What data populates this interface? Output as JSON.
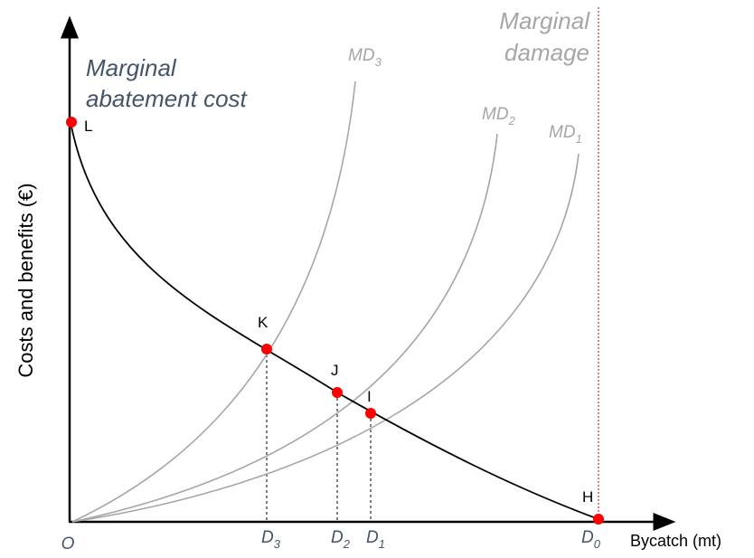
{
  "y_axis_label": "Costs and benefits (€)",
  "x_axis_label": "Bycatch (mt)",
  "origin_label": "O",
  "mac_label": {
    "line1": "Marginal",
    "line2": "abatement cost"
  },
  "md_label": {
    "line1": "Marginal",
    "line2": "damage"
  },
  "curves": [
    {
      "key": "md3",
      "base": "MD",
      "sub": "3"
    },
    {
      "key": "md2",
      "base": "MD",
      "sub": "2"
    },
    {
      "key": "md1",
      "base": "MD",
      "sub": "1"
    }
  ],
  "points": [
    {
      "key": "L",
      "label": "L"
    },
    {
      "key": "K",
      "label": "K"
    },
    {
      "key": "J",
      "label": "J"
    },
    {
      "key": "I",
      "label": "I"
    },
    {
      "key": "H",
      "label": "H"
    }
  ],
  "ticks": [
    {
      "key": "d3",
      "base": "D",
      "sub": "3"
    },
    {
      "key": "d2",
      "base": "D",
      "sub": "2"
    },
    {
      "key": "d1",
      "base": "D",
      "sub": "1"
    },
    {
      "key": "d0",
      "base": "D",
      "sub": "0"
    }
  ],
  "colors": {
    "mac_curve": "#000000",
    "md_curve": "#a6a6a6",
    "point": "#ff0000",
    "md_text": "#a6a6a6",
    "mac_text": "#44546a",
    "limit_line": "#c00000"
  }
}
